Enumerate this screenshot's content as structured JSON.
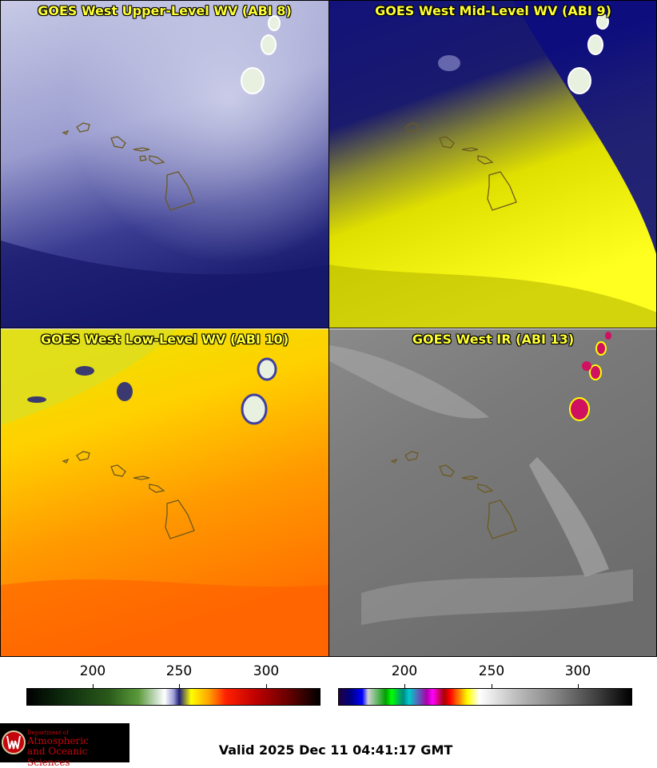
{
  "panels": [
    {
      "title": "GOES West Upper-Level WV (ABI 8)"
    },
    {
      "title": "GOES West Mid-Level WV (ABI 9)"
    },
    {
      "title": "GOES West Low-Level WV (ABI 10)"
    },
    {
      "title": "GOES West IR (ABI 13)"
    }
  ],
  "colorbars": {
    "left": {
      "ticks": [
        "200",
        "250",
        "300"
      ]
    },
    "right": {
      "ticks": [
        "200",
        "250",
        "300"
      ]
    }
  },
  "logo": {
    "line1": "Department of",
    "line2": "Atmospheric",
    "line3": "and Oceanic Sciences"
  },
  "valid_time": "Valid 2025 Dec 11 04:41:17 GMT"
}
